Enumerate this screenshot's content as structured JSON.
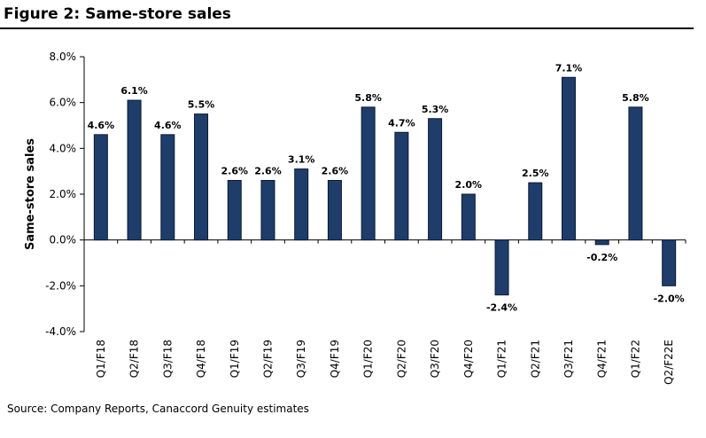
{
  "header": {
    "title": "Figure 2: Same-store sales"
  },
  "source_note": "Source: Company Reports, Canaccord Genuity estimates",
  "colors": {
    "bar": "#1f3d6b",
    "bar_edge": "#0b1a33",
    "axis": "#000000"
  },
  "chart_data": {
    "type": "bar",
    "ylabel": "Same-store sales",
    "xlabel": "",
    "ylim": [
      -4.0,
      8.0
    ],
    "y_ticks": [
      -4.0,
      -2.0,
      0.0,
      2.0,
      4.0,
      6.0,
      8.0
    ],
    "y_tick_labels": [
      "-4.0%",
      "-2.0%",
      "0.0%",
      "2.0%",
      "4.0%",
      "6.0%",
      "8.0%"
    ],
    "grid": false,
    "categories": [
      "Q1/F18",
      "Q2/F18",
      "Q3/F18",
      "Q4/F18",
      "Q1/F19",
      "Q2/F19",
      "Q3/F19",
      "Q4/F19",
      "Q1/F20",
      "Q2/F20",
      "Q3/F20",
      "Q4/F20",
      "Q1/F21",
      "Q2/F21",
      "Q3/F21",
      "Q4/F21",
      "Q1/F22",
      "Q2/F22E"
    ],
    "values": [
      4.6,
      6.1,
      4.6,
      5.5,
      2.6,
      2.6,
      3.1,
      2.6,
      5.8,
      4.7,
      5.3,
      2.0,
      -2.4,
      2.5,
      7.1,
      -0.2,
      5.8,
      -2.0
    ],
    "data_labels": [
      "4.6%",
      "6.1%",
      "4.6%",
      "5.5%",
      "2.6%",
      "2.6%",
      "3.1%",
      "2.6%",
      "5.8%",
      "4.7%",
      "5.3%",
      "2.0%",
      "-2.4%",
      "2.5%",
      "7.1%",
      "-0.2%",
      "5.8%",
      "-2.0%"
    ]
  }
}
